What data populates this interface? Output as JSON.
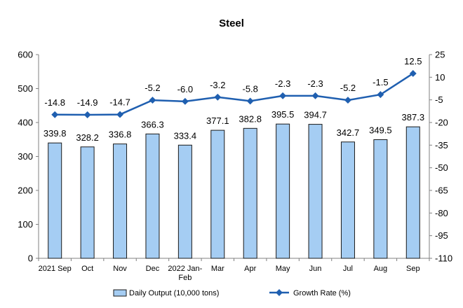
{
  "chart_data": {
    "type": "bar",
    "title": "Steel",
    "categories": [
      "2021 Sep",
      "Oct",
      "Nov",
      "Dec",
      "2022 Jan-Feb",
      "Mar",
      "Apr",
      "May",
      "Jun",
      "Jul",
      "Aug",
      "Sep"
    ],
    "series": [
      {
        "name": "Daily Output (10,000 tons)",
        "type": "bar",
        "axis": "left",
        "values": [
          339.8,
          328.2,
          336.8,
          366.3,
          333.4,
          377.1,
          382.8,
          395.5,
          394.7,
          342.7,
          349.5,
          387.3
        ],
        "labels": [
          "339.8",
          "328.2",
          "336.8",
          "366.3",
          "333.4",
          "377.1",
          "382.8",
          "395.5",
          "394.7",
          "342.7",
          "349.5",
          "387.3"
        ]
      },
      {
        "name": "Growth Rate (%)",
        "type": "line",
        "axis": "right",
        "values": [
          -14.8,
          -14.9,
          -14.7,
          -5.2,
          -6.0,
          -3.2,
          -5.8,
          -2.3,
          -2.3,
          -5.2,
          -1.5,
          12.5
        ],
        "labels": [
          "-14.8",
          "-14.9",
          "-14.7",
          "-5.2",
          "-6.0",
          "-3.2",
          "-5.8",
          "-2.3",
          "-2.3",
          "-5.2",
          "-1.5",
          "12.5"
        ]
      }
    ],
    "y_left": {
      "min": 0,
      "max": 600,
      "ticks": [
        "0",
        "100",
        "200",
        "300",
        "400",
        "500",
        "600"
      ]
    },
    "y_right": {
      "min": -110,
      "max": 25,
      "ticks": [
        "-110",
        "-95",
        "-80",
        "-65",
        "-50",
        "-35",
        "-20",
        "-5",
        "10",
        "25"
      ]
    },
    "grid": false,
    "legend_position": "bottom",
    "colors": {
      "bar_fill": "#a5cdf3",
      "bar_stroke": "#1a1a1a",
      "line": "#1f5fb0",
      "axis": "#808080"
    }
  }
}
